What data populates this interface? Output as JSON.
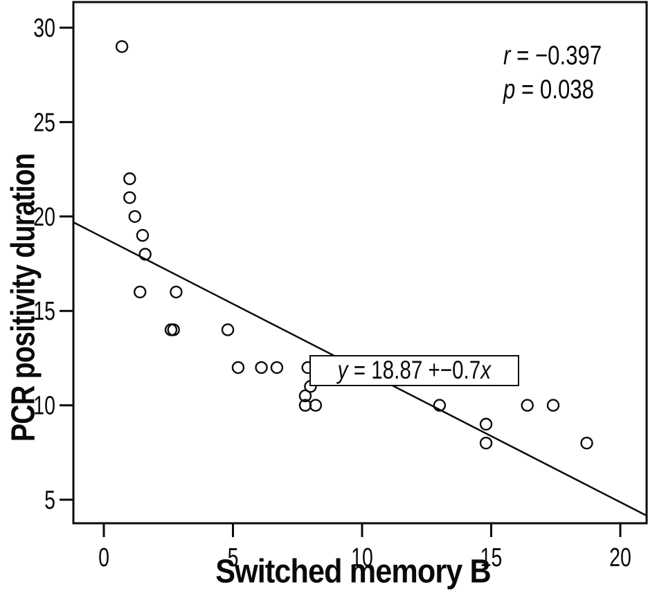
{
  "colors": {
    "background": "#ffffff",
    "ink": "#0a0a0a"
  },
  "chart_data": {
    "type": "scatter",
    "title": "",
    "xlabel": "Switched memory B",
    "ylabel": "PCR positivity duration",
    "x_ticks": [
      0,
      5,
      10,
      15,
      20
    ],
    "y_ticks": [
      5,
      10,
      15,
      20,
      25,
      30
    ],
    "xlim": [
      -1.2,
      21.0
    ],
    "ylim": [
      3.8,
      31.4
    ],
    "grid": false,
    "legend": "none",
    "marker": "open-circle",
    "points": [
      [
        0.7,
        29
      ],
      [
        1.0,
        22
      ],
      [
        1.0,
        21
      ],
      [
        1.2,
        20
      ],
      [
        1.5,
        19
      ],
      [
        1.6,
        18
      ],
      [
        1.4,
        16
      ],
      [
        2.8,
        16
      ],
      [
        2.6,
        14
      ],
      [
        2.7,
        14
      ],
      [
        4.8,
        14
      ],
      [
        5.2,
        12
      ],
      [
        6.1,
        12
      ],
      [
        6.7,
        12
      ],
      [
        7.9,
        12
      ],
      [
        8.0,
        11
      ],
      [
        7.8,
        10.5
      ],
      [
        7.8,
        10
      ],
      [
        8.2,
        10
      ],
      [
        13.0,
        10
      ],
      [
        14.8,
        9
      ],
      [
        14.8,
        8
      ],
      [
        16.4,
        10
      ],
      [
        17.4,
        10
      ],
      [
        18.7,
        8
      ]
    ],
    "regression_line": {
      "intercept": 18.87,
      "slope": -0.7
    },
    "stats": {
      "r_var": "r",
      "r_rest": " = −0.397",
      "p_var": "p",
      "p_rest": " = 0.038"
    },
    "equation": {
      "lhs": "y",
      "mid": " = 18.87 +−0.7",
      "rhs": "x"
    }
  }
}
